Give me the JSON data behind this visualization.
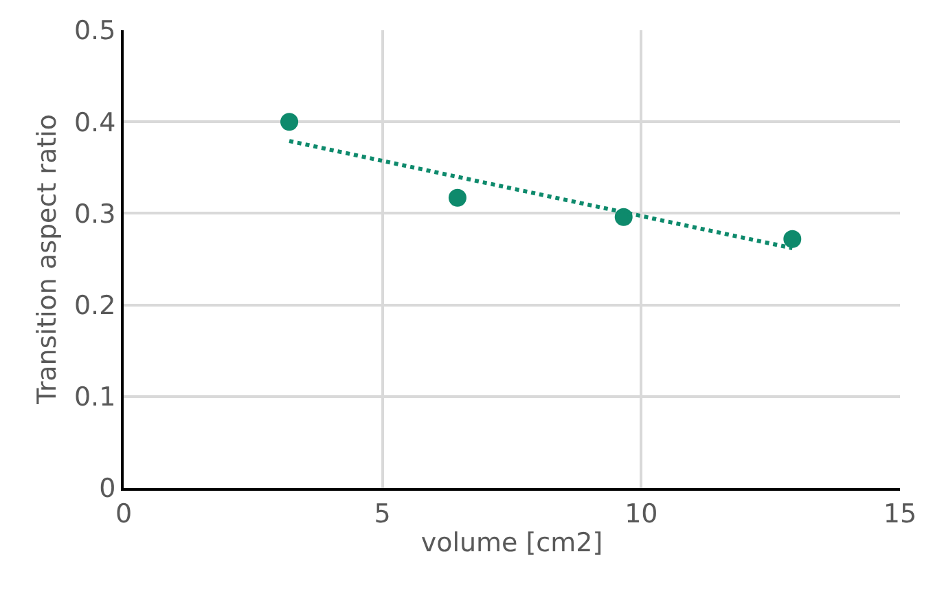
{
  "chart_data": {
    "type": "scatter",
    "xlabel": "volume [cm2]",
    "ylabel": "Transition aspect ratio",
    "series": [
      {
        "color": "#0e8a6c",
        "x": [
          3.2,
          6.45,
          9.66,
          12.92
        ],
        "values": [
          0.4,
          0.317,
          0.296,
          0.272
        ],
        "marker": "circle"
      },
      {
        "type": "line",
        "color": "#0e8a6c",
        "x": [
          3.2,
          12.92
        ],
        "values": [
          0.379,
          0.262
        ],
        "line_style": "dotted",
        "marker": "none"
      }
    ],
    "xlim": [
      0,
      15
    ],
    "xticks": [
      0,
      5,
      10,
      15
    ],
    "ylim": [
      0,
      0.5
    ],
    "yticks": [
      0,
      0.1,
      0.2,
      0.3,
      0.4,
      0.5
    ],
    "grid": true
  }
}
